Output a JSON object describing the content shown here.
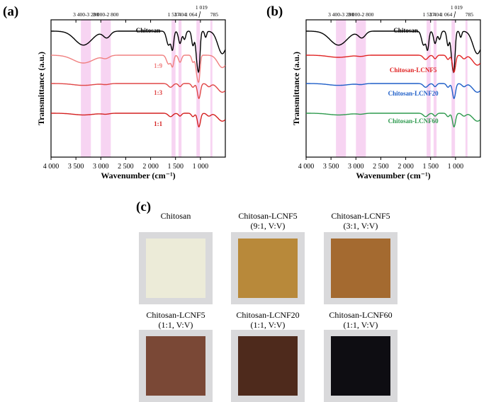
{
  "panels": {
    "a": "(a)",
    "b": "(b)",
    "c": "(c)"
  },
  "bands": [
    "3 400-3 200",
    "3 000-2 800",
    "1 537",
    "1 404",
    "1 064",
    "1 019",
    "785"
  ],
  "chart_data": [
    {
      "type": "line",
      "panel": "(a)",
      "xlabel": "Wavenumber (cm⁻¹)",
      "ylabel": "Transmittance (a.u.)",
      "xlim": [
        4000,
        500
      ],
      "x_reversed": true,
      "xticks": [
        4000,
        3500,
        3000,
        2500,
        2000,
        1500,
        1000
      ],
      "xtick_labels": [
        "4 000",
        "3 500",
        "3 000",
        "2 500",
        "2 000",
        "1 500",
        "1 000"
      ],
      "y_ticks_shown": false,
      "shaded_bands": [
        [
          3400,
          3200
        ],
        [
          3000,
          2800
        ],
        [
          1580,
          1500
        ],
        [
          1440,
          1380
        ],
        [
          1080,
          1010
        ],
        [
          800,
          760
        ]
      ],
      "band_labels": [
        "3 400-3 200",
        "3 000-2 800",
        "1 537",
        "1 404",
        "1 064",
        "1 019",
        "785"
      ],
      "series": [
        {
          "name": "Chitosan",
          "color": "#000000",
          "offset": 3
        },
        {
          "name": "1:9",
          "color": "#f08080",
          "offset": 2
        },
        {
          "name": "1:3",
          "color": "#e04646",
          "offset": 1
        },
        {
          "name": "1:1",
          "color": "#d42020",
          "offset": 0
        }
      ]
    },
    {
      "type": "line",
      "panel": "(b)",
      "xlabel": "Wavenumber (cm⁻¹)",
      "ylabel": "Transmittance (a.u.)",
      "xlim": [
        4000,
        500
      ],
      "x_reversed": true,
      "xticks": [
        4000,
        3500,
        3000,
        2500,
        2000,
        1500,
        1000
      ],
      "xtick_labels": [
        "4 000",
        "3 500",
        "3 000",
        "2 500",
        "2 000",
        "1 500",
        "1 000"
      ],
      "y_ticks_shown": false,
      "shaded_bands": [
        [
          3400,
          3200
        ],
        [
          3000,
          2800
        ],
        [
          1580,
          1500
        ],
        [
          1440,
          1380
        ],
        [
          1080,
          1010
        ],
        [
          800,
          760
        ]
      ],
      "band_labels": [
        "3 400-3 200",
        "3 000-2 800",
        "1 537",
        "1 404",
        "1 064",
        "1 019",
        "785"
      ],
      "series": [
        {
          "name": "Chitosan",
          "color": "#000000",
          "offset": 3
        },
        {
          "name": "Chitosan-LCNF5",
          "color": "#e02424",
          "offset": 2
        },
        {
          "name": "Chitosan-LCNF20",
          "color": "#1f5fc8",
          "offset": 1
        },
        {
          "name": "Chitosan-LCNF60",
          "color": "#2e9a4e",
          "offset": 0
        }
      ]
    }
  ],
  "photos": {
    "row1": [
      {
        "line1": "Chitosan",
        "line2": "",
        "color": "#ecebd8"
      },
      {
        "line1": "Chitosan-LCNF5",
        "line2": "(9:1, V:V)",
        "color": "#b8893a"
      },
      {
        "line1": "Chitosan-LCNF5",
        "line2": "(3:1, V:V)",
        "color": "#a46a30"
      }
    ],
    "row2": [
      {
        "line1": "Chitosan-LCNF5",
        "line2": "(1:1, V:V)",
        "color": "#7a4836"
      },
      {
        "line1": "Chitosan-LCNF20",
        "line2": "(1:1, V:V)",
        "color": "#4e2a1c"
      },
      {
        "line1": "Chitosan-LCNF60",
        "line2": "(1:1, V:V)",
        "color": "#0e0d12"
      }
    ]
  }
}
